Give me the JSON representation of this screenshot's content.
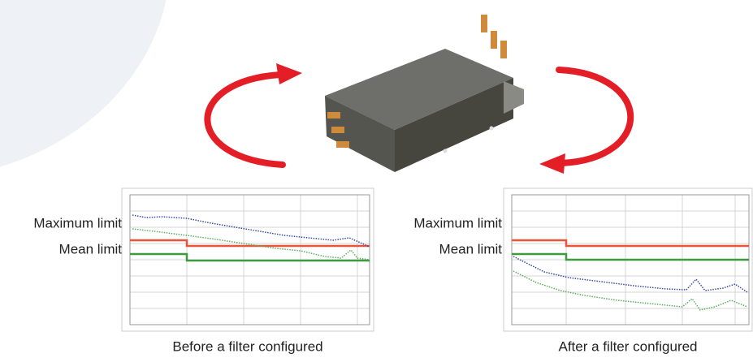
{
  "panels": [
    {
      "maximum_label": "Maximum limit",
      "mean_label": "Mean limit",
      "caption": "Before a filter configured"
    },
    {
      "maximum_label": "Maximum limit",
      "mean_label": "Mean limit",
      "caption": "After a filter configured"
    }
  ]
}
